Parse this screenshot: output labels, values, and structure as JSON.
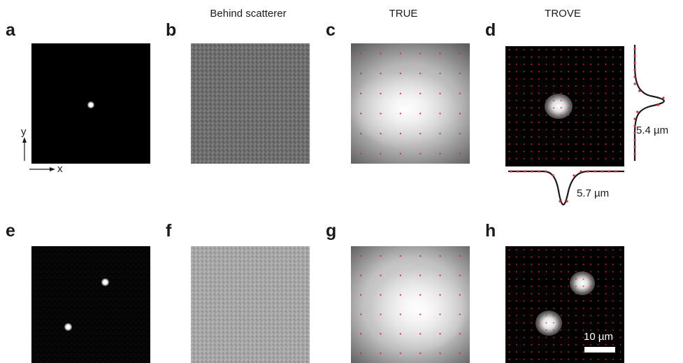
{
  "columns": {
    "col_b": "Behind scatterer",
    "col_c": "TRUE",
    "col_d": "TROVE"
  },
  "panel_labels": [
    "a",
    "b",
    "c",
    "d",
    "e",
    "f",
    "g",
    "h"
  ],
  "axes": {
    "y": "y",
    "x": "x"
  },
  "profiles": {
    "vertical_fwhm": "5.4 µm",
    "horizontal_fwhm": "5.7 µm"
  },
  "scale_bar": {
    "label": "10 µm"
  },
  "colors": {
    "grid_dot": "#e8242b",
    "profile_line": "#1a1a1a",
    "background": "#ffffff"
  }
}
